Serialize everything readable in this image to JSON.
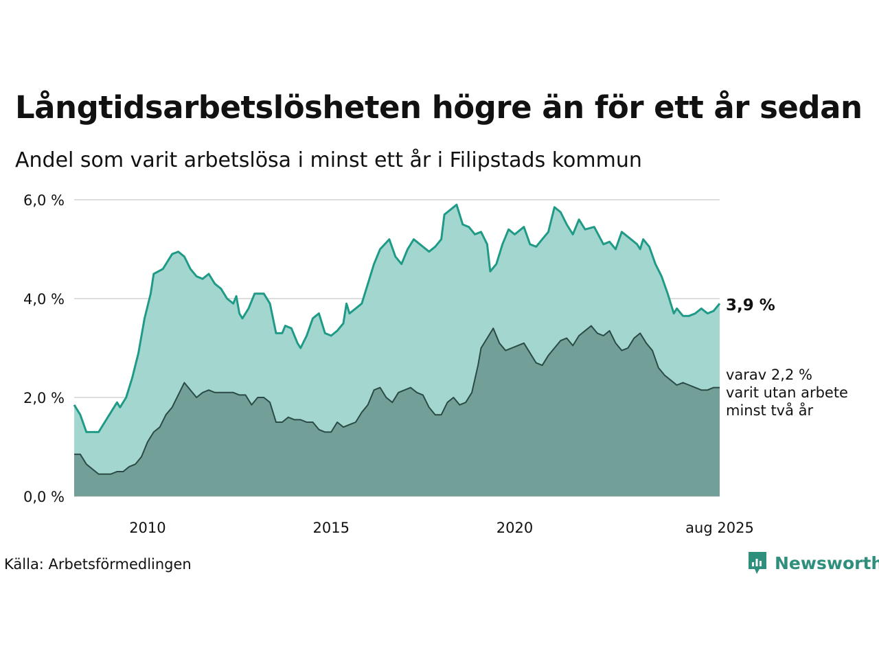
{
  "header": {
    "title": "Långtidsarbetslösheten högre än för ett år sedan",
    "subtitle": "Andel som varit arbetslösa i minst ett år i Filipstads kommun"
  },
  "footer": {
    "source": "Källa: Arbetsförmedlingen",
    "brand": "Newsworthy"
  },
  "colors": {
    "total_line": "#1f9a87",
    "total_fill": "#a4d6d0",
    "long_line": "#2a4a44",
    "long_fill": "#729f98",
    "grid": "#dddddd",
    "brand": "#2e8f7d"
  },
  "chart_data": {
    "type": "area",
    "title": "Långtidsarbetslösheten högre än för ett år sedan",
    "subtitle": "Andel som varit arbetslösa i minst ett år i Filipstads kommun",
    "y_ticks": [
      "0,0 %",
      "2,0 %",
      "4,0 %",
      "6,0 %"
    ],
    "y_tick_values": [
      0,
      2,
      4,
      6
    ],
    "ylim": [
      0,
      6
    ],
    "x_ticks": [
      "2010",
      "2015",
      "2020",
      "aug 2025"
    ],
    "x_tick_dates": [
      "2010-01",
      "2015-01",
      "2020-01",
      "2025-08"
    ],
    "x_range": [
      "2008-01",
      "2025-08"
    ],
    "grid": true,
    "series": [
      {
        "key": "total",
        "points": [
          [
            "2008-01",
            1.85
          ],
          [
            "2008-03",
            1.65
          ],
          [
            "2008-05",
            1.3
          ],
          [
            "2008-07",
            1.3
          ],
          [
            "2008-09",
            1.3
          ],
          [
            "2008-11",
            1.5
          ],
          [
            "2009-01",
            1.7
          ],
          [
            "2009-03",
            1.9
          ],
          [
            "2009-04",
            1.8
          ],
          [
            "2009-06",
            2.0
          ],
          [
            "2009-08",
            2.4
          ],
          [
            "2009-10",
            2.9
          ],
          [
            "2009-12",
            3.6
          ],
          [
            "2010-02",
            4.1
          ],
          [
            "2010-03",
            4.5
          ],
          [
            "2010-06",
            4.6
          ],
          [
            "2010-09",
            4.9
          ],
          [
            "2010-11",
            4.95
          ],
          [
            "2011-01",
            4.85
          ],
          [
            "2011-03",
            4.6
          ],
          [
            "2011-05",
            4.45
          ],
          [
            "2011-07",
            4.4
          ],
          [
            "2011-09",
            4.5
          ],
          [
            "2011-11",
            4.3
          ],
          [
            "2012-01",
            4.2
          ],
          [
            "2012-03",
            4.0
          ],
          [
            "2012-05",
            3.9
          ],
          [
            "2012-06",
            4.05
          ],
          [
            "2012-07",
            3.7
          ],
          [
            "2012-08",
            3.6
          ],
          [
            "2012-10",
            3.8
          ],
          [
            "2012-12",
            4.1
          ],
          [
            "2013-03",
            4.1
          ],
          [
            "2013-05",
            3.9
          ],
          [
            "2013-07",
            3.3
          ],
          [
            "2013-09",
            3.3
          ],
          [
            "2013-10",
            3.45
          ],
          [
            "2013-12",
            3.4
          ],
          [
            "2014-02",
            3.1
          ],
          [
            "2014-03",
            3.0
          ],
          [
            "2014-05",
            3.25
          ],
          [
            "2014-07",
            3.6
          ],
          [
            "2014-09",
            3.7
          ],
          [
            "2014-11",
            3.3
          ],
          [
            "2015-01",
            3.25
          ],
          [
            "2015-03",
            3.35
          ],
          [
            "2015-05",
            3.5
          ],
          [
            "2015-06",
            3.9
          ],
          [
            "2015-07",
            3.7
          ],
          [
            "2015-09",
            3.8
          ],
          [
            "2015-11",
            3.9
          ],
          [
            "2016-01",
            4.3
          ],
          [
            "2016-03",
            4.7
          ],
          [
            "2016-05",
            5.0
          ],
          [
            "2016-08",
            5.2
          ],
          [
            "2016-10",
            4.85
          ],
          [
            "2016-12",
            4.7
          ],
          [
            "2017-02",
            5.0
          ],
          [
            "2017-04",
            5.2
          ],
          [
            "2017-07",
            5.05
          ],
          [
            "2017-09",
            4.95
          ],
          [
            "2017-11",
            5.05
          ],
          [
            "2018-01",
            5.2
          ],
          [
            "2018-02",
            5.7
          ],
          [
            "2018-04",
            5.8
          ],
          [
            "2018-06",
            5.9
          ],
          [
            "2018-08",
            5.5
          ],
          [
            "2018-10",
            5.45
          ],
          [
            "2018-12",
            5.3
          ],
          [
            "2019-02",
            5.35
          ],
          [
            "2019-04",
            5.1
          ],
          [
            "2019-05",
            4.55
          ],
          [
            "2019-07",
            4.7
          ],
          [
            "2019-09",
            5.1
          ],
          [
            "2019-11",
            5.4
          ],
          [
            "2020-01",
            5.3
          ],
          [
            "2020-04",
            5.45
          ],
          [
            "2020-06",
            5.1
          ],
          [
            "2020-08",
            5.05
          ],
          [
            "2020-10",
            5.2
          ],
          [
            "2020-12",
            5.35
          ],
          [
            "2021-02",
            5.85
          ],
          [
            "2021-04",
            5.75
          ],
          [
            "2021-06",
            5.5
          ],
          [
            "2021-08",
            5.3
          ],
          [
            "2021-10",
            5.6
          ],
          [
            "2021-12",
            5.4
          ],
          [
            "2022-03",
            5.45
          ],
          [
            "2022-06",
            5.1
          ],
          [
            "2022-08",
            5.15
          ],
          [
            "2022-10",
            5.0
          ],
          [
            "2022-12",
            5.35
          ],
          [
            "2023-03",
            5.2
          ],
          [
            "2023-05",
            5.1
          ],
          [
            "2023-06",
            5.0
          ],
          [
            "2023-07",
            5.2
          ],
          [
            "2023-09",
            5.05
          ],
          [
            "2023-11",
            4.7
          ],
          [
            "2024-01",
            4.45
          ],
          [
            "2024-03",
            4.1
          ],
          [
            "2024-05",
            3.7
          ],
          [
            "2024-06",
            3.8
          ],
          [
            "2024-08",
            3.65
          ],
          [
            "2024-10",
            3.65
          ],
          [
            "2024-12",
            3.7
          ],
          [
            "2025-02",
            3.8
          ],
          [
            "2025-04",
            3.7
          ],
          [
            "2025-06",
            3.75
          ],
          [
            "2025-08",
            3.9
          ]
        ]
      },
      {
        "key": "long",
        "points": [
          [
            "2008-01",
            0.85
          ],
          [
            "2008-03",
            0.85
          ],
          [
            "2008-05",
            0.65
          ],
          [
            "2008-07",
            0.55
          ],
          [
            "2008-09",
            0.45
          ],
          [
            "2008-11",
            0.45
          ],
          [
            "2009-01",
            0.45
          ],
          [
            "2009-03",
            0.5
          ],
          [
            "2009-05",
            0.5
          ],
          [
            "2009-07",
            0.6
          ],
          [
            "2009-09",
            0.65
          ],
          [
            "2009-11",
            0.8
          ],
          [
            "2010-01",
            1.1
          ],
          [
            "2010-03",
            1.3
          ],
          [
            "2010-05",
            1.4
          ],
          [
            "2010-07",
            1.65
          ],
          [
            "2010-09",
            1.8
          ],
          [
            "2010-11",
            2.05
          ],
          [
            "2011-01",
            2.3
          ],
          [
            "2011-03",
            2.15
          ],
          [
            "2011-05",
            2.0
          ],
          [
            "2011-07",
            2.1
          ],
          [
            "2011-09",
            2.15
          ],
          [
            "2011-11",
            2.1
          ],
          [
            "2012-01",
            2.1
          ],
          [
            "2012-03",
            2.1
          ],
          [
            "2012-05",
            2.1
          ],
          [
            "2012-07",
            2.05
          ],
          [
            "2012-09",
            2.05
          ],
          [
            "2012-11",
            1.85
          ],
          [
            "2013-01",
            2.0
          ],
          [
            "2013-03",
            2.0
          ],
          [
            "2013-05",
            1.9
          ],
          [
            "2013-07",
            1.5
          ],
          [
            "2013-09",
            1.5
          ],
          [
            "2013-11",
            1.6
          ],
          [
            "2014-01",
            1.55
          ],
          [
            "2014-03",
            1.55
          ],
          [
            "2014-05",
            1.5
          ],
          [
            "2014-07",
            1.5
          ],
          [
            "2014-09",
            1.35
          ],
          [
            "2014-11",
            1.3
          ],
          [
            "2015-01",
            1.3
          ],
          [
            "2015-03",
            1.5
          ],
          [
            "2015-05",
            1.4
          ],
          [
            "2015-07",
            1.45
          ],
          [
            "2015-09",
            1.5
          ],
          [
            "2015-11",
            1.7
          ],
          [
            "2016-01",
            1.85
          ],
          [
            "2016-03",
            2.15
          ],
          [
            "2016-05",
            2.2
          ],
          [
            "2016-07",
            2.0
          ],
          [
            "2016-09",
            1.9
          ],
          [
            "2016-11",
            2.1
          ],
          [
            "2017-01",
            2.15
          ],
          [
            "2017-03",
            2.2
          ],
          [
            "2017-05",
            2.1
          ],
          [
            "2017-07",
            2.05
          ],
          [
            "2017-09",
            1.8
          ],
          [
            "2017-11",
            1.65
          ],
          [
            "2018-01",
            1.65
          ],
          [
            "2018-03",
            1.9
          ],
          [
            "2018-05",
            2.0
          ],
          [
            "2018-07",
            1.85
          ],
          [
            "2018-09",
            1.9
          ],
          [
            "2018-11",
            2.1
          ],
          [
            "2019-01",
            2.65
          ],
          [
            "2019-02",
            3.0
          ],
          [
            "2019-04",
            3.2
          ],
          [
            "2019-06",
            3.4
          ],
          [
            "2019-08",
            3.1
          ],
          [
            "2019-10",
            2.95
          ],
          [
            "2019-12",
            3.0
          ],
          [
            "2020-02",
            3.05
          ],
          [
            "2020-04",
            3.1
          ],
          [
            "2020-06",
            2.9
          ],
          [
            "2020-08",
            2.7
          ],
          [
            "2020-10",
            2.65
          ],
          [
            "2020-12",
            2.85
          ],
          [
            "2021-02",
            3.0
          ],
          [
            "2021-04",
            3.15
          ],
          [
            "2021-06",
            3.2
          ],
          [
            "2021-08",
            3.05
          ],
          [
            "2021-10",
            3.25
          ],
          [
            "2021-12",
            3.35
          ],
          [
            "2022-02",
            3.45
          ],
          [
            "2022-04",
            3.3
          ],
          [
            "2022-06",
            3.25
          ],
          [
            "2022-08",
            3.35
          ],
          [
            "2022-10",
            3.1
          ],
          [
            "2022-12",
            2.95
          ],
          [
            "2023-02",
            3.0
          ],
          [
            "2023-04",
            3.2
          ],
          [
            "2023-06",
            3.3
          ],
          [
            "2023-08",
            3.1
          ],
          [
            "2023-10",
            2.95
          ],
          [
            "2023-12",
            2.6
          ],
          [
            "2024-02",
            2.45
          ],
          [
            "2024-04",
            2.35
          ],
          [
            "2024-06",
            2.25
          ],
          [
            "2024-08",
            2.3
          ],
          [
            "2024-10",
            2.25
          ],
          [
            "2024-12",
            2.2
          ],
          [
            "2025-02",
            2.15
          ],
          [
            "2025-04",
            2.15
          ],
          [
            "2025-06",
            2.2
          ],
          [
            "2025-08",
            2.2
          ]
        ]
      }
    ],
    "end_labels": {
      "total": "3,9 %",
      "long_line1": "varav 2,2 %",
      "long_line2": "varit utan arbete",
      "long_line3": "minst två år"
    }
  }
}
